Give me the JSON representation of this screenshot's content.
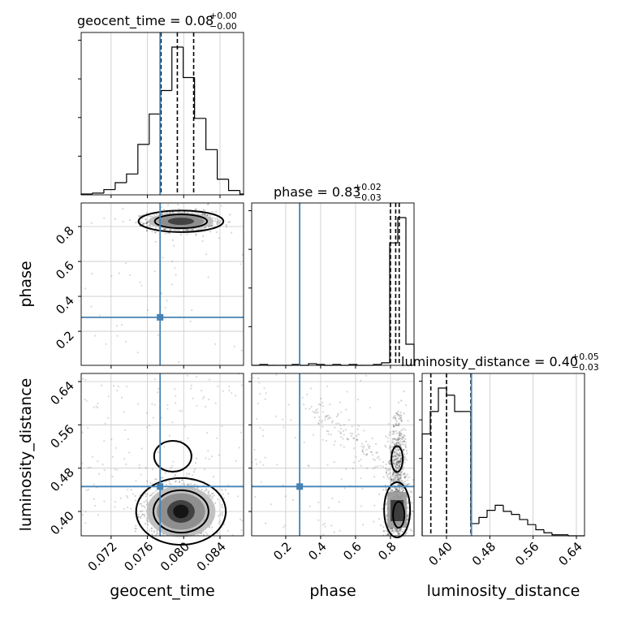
{
  "chart_data": {
    "type": "corner",
    "parameters": [
      "geocent_time",
      "phase",
      "luminosity_distance"
    ],
    "truths": {
      "geocent_time": 0.0774,
      "phase": 0.28,
      "luminosity_distance": 0.446
    },
    "truth_color": "#4682b4",
    "grid": true,
    "titles": [
      {
        "name": "geocent_time",
        "value": "0.08",
        "plus": "+0.00",
        "minus": "−0.00"
      },
      {
        "name": "phase",
        "value": "0.83",
        "plus": "+0.02",
        "minus": "−0.03"
      },
      {
        "name": "luminosity_distance",
        "value": "0.40",
        "plus": "+0.05",
        "minus": "−0.03"
      }
    ],
    "ranges": {
      "geocent_time": [
        0.0687,
        0.0866
      ],
      "phase": [
        0.005,
        0.935
      ],
      "luminosity_distance": [
        0.355,
        0.655
      ]
    },
    "ticks": {
      "geocent_time": {
        "values": [
          0.072,
          0.076,
          0.08,
          0.084
        ],
        "labels": [
          "0.072",
          "0.076",
          "0.080",
          "0.084"
        ]
      },
      "phase_x": {
        "values": [
          0.2,
          0.4,
          0.6,
          0.8
        ],
        "labels": [
          "0.2",
          "0.4",
          "0.6",
          "0.8"
        ]
      },
      "phase_y": {
        "values": [
          0.2,
          0.4,
          0.6,
          0.8
        ],
        "labels": [
          "0.2",
          "0.4",
          "0.6",
          "0.8"
        ]
      },
      "luminosity_distance": {
        "values": [
          0.4,
          0.48,
          0.56,
          0.64
        ],
        "labels": [
          "0.40",
          "0.48",
          "0.56",
          "0.64"
        ]
      }
    },
    "histograms": {
      "geocent_time": {
        "edges": [
          0.0687,
          0.06995,
          0.0712,
          0.07245,
          0.0737,
          0.07495,
          0.0762,
          0.07745,
          0.0787,
          0.07995,
          0.0812,
          0.08245,
          0.0837,
          0.08495,
          0.0862,
          0.08745
        ],
        "counts": [
          1,
          2,
          6,
          14,
          24,
          58,
          93,
          120,
          170,
          135,
          88,
          52,
          18,
          5,
          1
        ],
        "quantiles": [
          0.0775,
          0.0793,
          0.0811
        ]
      },
      "phase": {
        "edges": [
          0.005,
          0.0515,
          0.098,
          0.1445,
          0.191,
          0.2375,
          0.284,
          0.3305,
          0.377,
          0.4235,
          0.47,
          0.5165,
          0.563,
          0.6095,
          0.656,
          0.7025,
          0.749,
          0.7955,
          0.842,
          0.8885,
          0.935
        ],
        "counts": [
          0,
          1,
          0,
          0,
          0,
          1,
          0,
          2,
          1,
          0,
          1,
          0,
          1,
          0,
          0,
          1,
          3,
          145,
          175,
          25
        ],
        "quantiles": [
          0.8,
          0.83,
          0.85
        ]
      },
      "luminosity_distance": {
        "edges": [
          0.355,
          0.37,
          0.385,
          0.4,
          0.415,
          0.43,
          0.445,
          0.46,
          0.475,
          0.49,
          0.505,
          0.52,
          0.535,
          0.55,
          0.565,
          0.58,
          0.595,
          0.61,
          0.625,
          0.64,
          0.655
        ],
        "counts": [
          100,
          122,
          145,
          138,
          122,
          122,
          12,
          18,
          25,
          30,
          24,
          21,
          16,
          11,
          6,
          3,
          1,
          1,
          0,
          0
        ],
        "quantiles": [
          0.371,
          0.4,
          0.445
        ]
      }
    },
    "scatter": {
      "phase_vs_geocent_time": {
        "center": [
          0.0797,
          0.83
        ],
        "spread": [
          0.0018,
          0.028
        ],
        "n": 1100,
        "outliers": 55
      },
      "luminosity_distance_vs_geocent_time": {
        "center": [
          0.0797,
          0.4
        ],
        "spread": [
          0.0019,
          0.028
        ],
        "n": 1100,
        "outliers": 170
      },
      "luminosity_distance_vs_phase": {
        "center": [
          0.838,
          0.4
        ],
        "spread": [
          0.03,
          0.03
        ],
        "n": 900,
        "outliers": 110
      }
    },
    "xlabels": [
      "geocent_time",
      "phase",
      "luminosity_distance"
    ],
    "ylabels": [
      "phase",
      "luminosity_distance"
    ]
  }
}
